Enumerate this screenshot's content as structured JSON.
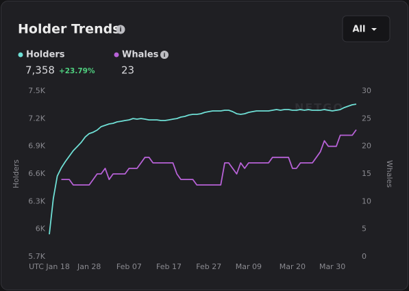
{
  "chart_data": {
    "type": "line",
    "title": "Holder Trends",
    "filter": "All",
    "watermark": "NETGO",
    "ylabel": "Holders",
    "y2label": "Whales",
    "categories": [
      "UTC Jan 18",
      null,
      null,
      null,
      null,
      null,
      null,
      null,
      null,
      null,
      "Jan 28",
      null,
      null,
      null,
      null,
      null,
      null,
      null,
      null,
      null,
      "Feb 07",
      null,
      null,
      null,
      null,
      null,
      null,
      null,
      null,
      null,
      "Feb 17",
      null,
      null,
      null,
      null,
      null,
      null,
      null,
      null,
      null,
      "Feb 27",
      null,
      null,
      null,
      null,
      null,
      null,
      null,
      null,
      null,
      "Mar 09",
      null,
      null,
      null,
      null,
      null,
      null,
      null,
      null,
      null,
      null,
      "Mar 20",
      null,
      null,
      null,
      null,
      null,
      null,
      null,
      null,
      null,
      "Mar 30",
      null,
      null,
      null,
      null,
      null,
      null
    ],
    "series": [
      {
        "name": "Holders",
        "color": "#6fe0d6",
        "summary": "7,358",
        "change": "+23.79%",
        "values": [
          5944,
          6331,
          6577,
          6666,
          6733,
          6793,
          6852,
          6897,
          6942,
          7001,
          7038,
          7053,
          7076,
          7113,
          7128,
          7143,
          7150,
          7165,
          7172,
          7180,
          7187,
          7202,
          7195,
          7202,
          7195,
          7187,
          7187,
          7187,
          7180,
          7180,
          7187,
          7195,
          7202,
          7217,
          7225,
          7240,
          7247,
          7247,
          7254,
          7269,
          7277,
          7284,
          7284,
          7284,
          7292,
          7292,
          7277,
          7254,
          7247,
          7254,
          7269,
          7277,
          7284,
          7284,
          7284,
          7284,
          7292,
          7299,
          7292,
          7299,
          7299,
          7292,
          7292,
          7299,
          7292,
          7299,
          7292,
          7292,
          7292,
          7299,
          7292,
          7284,
          7292,
          7299,
          7321,
          7336,
          7351,
          7358
        ]
      },
      {
        "name": "Whales",
        "color": "#b862d8",
        "summary": "23",
        "axis": "y2",
        "values": [
          null,
          null,
          null,
          14,
          14,
          14,
          13,
          13,
          13,
          13,
          13,
          14,
          15,
          15,
          16,
          14,
          15,
          15,
          15,
          15,
          16,
          16,
          16,
          17,
          18,
          18,
          17,
          17,
          17,
          17,
          17,
          17,
          15,
          14,
          14,
          14,
          14,
          13,
          13,
          13,
          13,
          13,
          13,
          13,
          17,
          17,
          16,
          15,
          17,
          16,
          17,
          17,
          17,
          17,
          17,
          17,
          18,
          18,
          18,
          18,
          18,
          16,
          16,
          17,
          17,
          17,
          17,
          18,
          19,
          21,
          20,
          20,
          20,
          22,
          22,
          22,
          22,
          23
        ]
      }
    ],
    "ylim": [
      5700,
      7500
    ],
    "yticks": [
      {
        "value": 5700,
        "label": "5.7K"
      },
      {
        "value": 6000,
        "label": "6K"
      },
      {
        "value": 6300,
        "label": "6.3K"
      },
      {
        "value": 6600,
        "label": "6.6K"
      },
      {
        "value": 6900,
        "label": "6.9K"
      },
      {
        "value": 7200,
        "label": "7.2K"
      },
      {
        "value": 7500,
        "label": "7.5K"
      }
    ],
    "y2lim": [
      0,
      30
    ],
    "y2ticks": [
      0,
      5,
      10,
      15,
      20,
      25,
      30
    ],
    "grid": false
  }
}
